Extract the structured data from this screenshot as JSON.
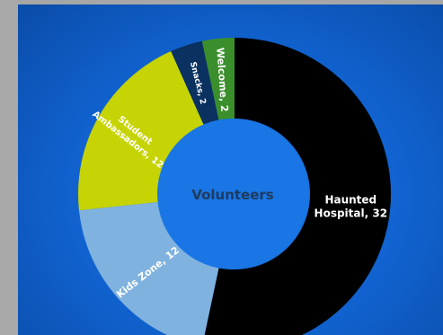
{
  "chart_data": {
    "type": "pie",
    "title": "Volunteers",
    "slices": [
      {
        "label": "Haunted Hospital",
        "value": 32,
        "color": "#000000",
        "text_color": "#ffffff"
      },
      {
        "label": "Kids Zone",
        "value": 12,
        "color": "#7fb2de",
        "text_color": "#ffffff"
      },
      {
        "label": "Student Ambassadors",
        "value": 12,
        "color": "#c6d405",
        "text_color": "#1e3a5e"
      },
      {
        "label": "Snacks",
        "value": 2,
        "color": "#0a315f",
        "text_color": "#ffffff"
      },
      {
        "label": "Welcome",
        "value": 2,
        "color": "#3a8f2c",
        "text_color": "#ffffff"
      }
    ],
    "display_labels": {
      "haunted": [
        "Haunted",
        "Hospital, 32"
      ],
      "kids": [
        "Kids Zone, 12"
      ],
      "students": [
        "Student",
        "Ambassadors, 12"
      ],
      "snacks": [
        "Snacks, 2"
      ],
      "welcome": [
        "Welcome, 2"
      ]
    },
    "center_color": "#1976e4",
    "background_color": "#1266d6"
  }
}
